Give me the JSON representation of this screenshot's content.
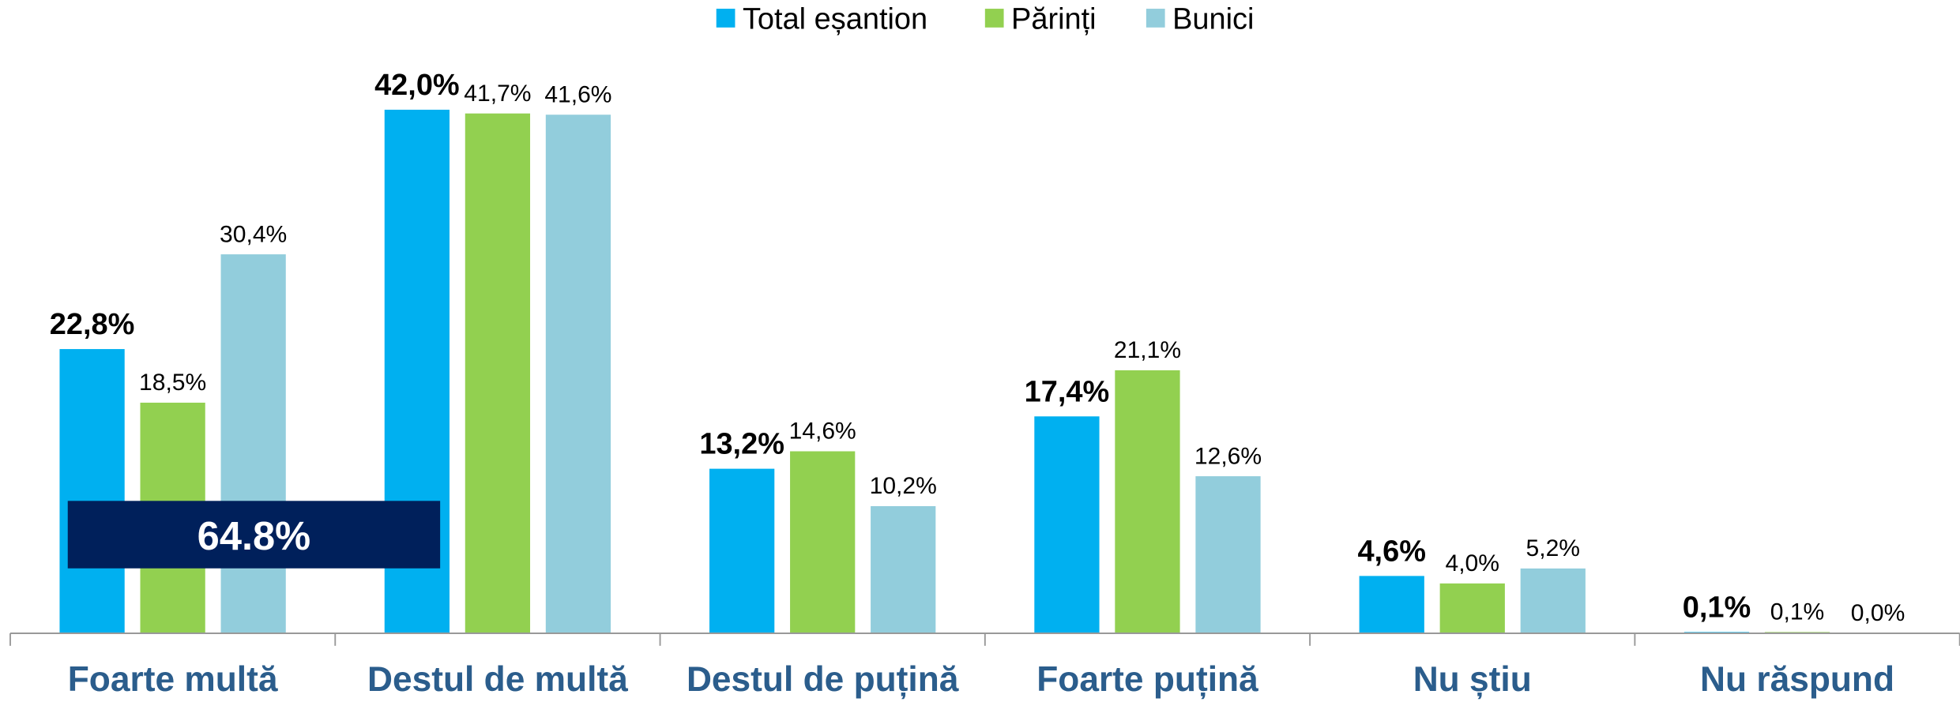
{
  "chart_data": {
    "type": "bar",
    "categories": [
      "Foarte multă",
      "Destul de multă",
      "Destul de puțină",
      "Foarte puțină",
      "Nu știu",
      "Nu răspund"
    ],
    "series": [
      {
        "name": "Total eșantion",
        "color": "#00b0f0",
        "values": [
          22.8,
          42.0,
          13.2,
          17.4,
          4.6,
          0.1
        ],
        "value_labels": [
          "22,8%",
          "42,0%",
          "13,2%",
          "17,4%",
          "4,6%",
          "0,1%"
        ]
      },
      {
        "name": "Părinți",
        "color": "#92d050",
        "values": [
          18.5,
          41.7,
          14.6,
          21.1,
          4.0,
          0.1
        ],
        "value_labels": [
          "18,5%",
          "41,7%",
          "14,6%",
          "21,1%",
          "4,0%",
          "0,1%"
        ]
      },
      {
        "name": "Bunici",
        "color": "#92cddc",
        "values": [
          30.4,
          41.6,
          10.2,
          12.6,
          5.2,
          0.0
        ],
        "value_labels": [
          "30,4%",
          "41,6%",
          "10,2%",
          "12,6%",
          "5,2%",
          "0,0%"
        ]
      }
    ],
    "annotation": "64.8%",
    "legend": "top"
  }
}
